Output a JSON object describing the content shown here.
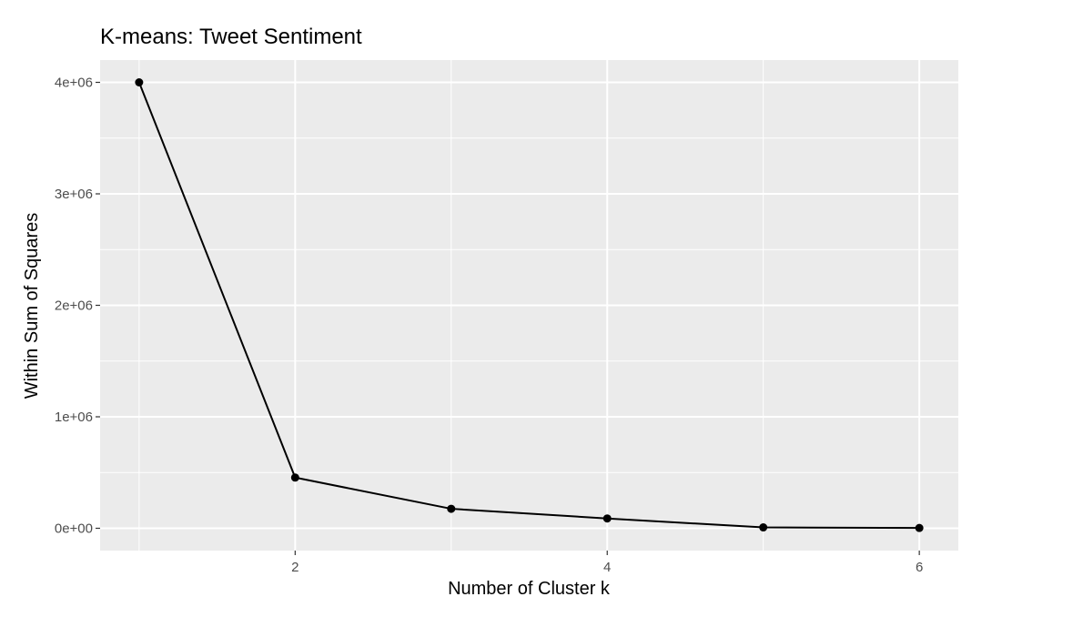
{
  "chart_data": {
    "type": "line",
    "title": "K-means: Tweet Sentiment",
    "xlabel": "Number of Cluster k",
    "ylabel": "Within Sum of Squares",
    "x": [
      1,
      2,
      3,
      4,
      5,
      6
    ],
    "series": [
      {
        "values": [
          4000000,
          455000,
          175000,
          88000,
          8000,
          3000
        ]
      }
    ],
    "xlim": [
      0.75,
      6.25
    ],
    "ylim": [
      -200000,
      4200000
    ],
    "x_ticks": [
      2,
      4,
      6
    ],
    "x_tick_labels": [
      "2",
      "4",
      "6"
    ],
    "y_ticks": [
      0,
      1000000,
      2000000,
      3000000,
      4000000
    ],
    "y_tick_labels": [
      "0e+00",
      "1e+06",
      "2e+06",
      "3e+06",
      "4e+06"
    ],
    "grid": true,
    "legend": "none",
    "colors": {
      "panel_background": "#ebebeb",
      "grid_major": "#ffffff",
      "line": "#000000",
      "point": "#000000",
      "tick_mark": "#333333"
    }
  }
}
